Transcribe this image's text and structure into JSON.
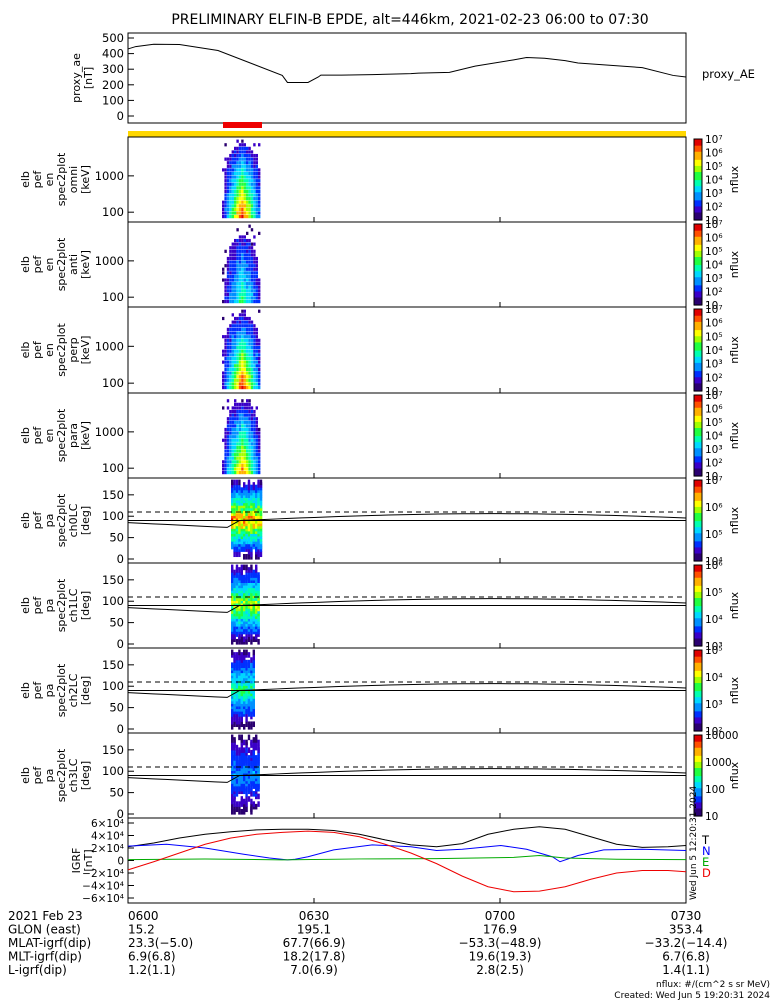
{
  "title": "PRELIMINARY ELFIN-B EPDE, alt=446km, 2021-02-23 06:00 to 07:30",
  "colors": {
    "yellow_bar": "#ffd700",
    "red_bar": "#ee0000",
    "T": "#000000",
    "N": "#0000ff",
    "E": "#00aa00",
    "D": "#ee0000"
  },
  "chart_data": [
    {
      "type": "line",
      "panel": "proxy_ae",
      "ylabel": [
        "proxy_ae",
        "[nT]"
      ],
      "series_label": "proxy_AE",
      "ylim": [
        0,
        550
      ],
      "yticks": [
        "0",
        "100",
        "200",
        "300",
        "400",
        "500"
      ],
      "x_minutes": [
        0,
        3,
        10,
        20,
        35,
        60,
        62,
        70,
        74,
        75,
        80,
        83,
        95,
        110,
        113,
        125,
        135,
        150,
        155,
        162,
        170,
        175,
        200,
        212,
        217
      ],
      "values": [
        430,
        445,
        460,
        458,
        420,
        260,
        215,
        215,
        250,
        262,
        262,
        262,
        265,
        272,
        275,
        280,
        320,
        360,
        375,
        370,
        355,
        340,
        310,
        260,
        250
      ]
    },
    {
      "type": "heatmap",
      "panel": "elb_pef_en_spec2plot_omni",
      "ylabel": [
        "elb",
        "pef",
        "en",
        "spec2plot",
        "omni",
        "[keV]"
      ],
      "scale": "log",
      "yticks": [
        "100",
        "1000"
      ],
      "colorbar_label": "nflux",
      "colorbar_ticks": [
        "10",
        "10²",
        "10³",
        "10⁴",
        "10⁵",
        "10⁶",
        "10⁷"
      ]
    },
    {
      "type": "heatmap",
      "panel": "elb_pef_en_spec2plot_anti",
      "ylabel": [
        "elb",
        "pef",
        "en",
        "spec2plot",
        "anti",
        "[keV]"
      ],
      "scale": "log",
      "yticks": [
        "100",
        "1000"
      ],
      "colorbar_label": "nflux",
      "colorbar_ticks": [
        "10",
        "10²",
        "10³",
        "10⁴",
        "10⁵",
        "10⁶",
        "10⁷"
      ]
    },
    {
      "type": "heatmap",
      "panel": "elb_pef_en_spec2plot_perp",
      "ylabel": [
        "elb",
        "pef",
        "en",
        "spec2plot",
        "perp",
        "[keV]"
      ],
      "scale": "log",
      "yticks": [
        "100",
        "1000"
      ],
      "colorbar_label": "nflux",
      "colorbar_ticks": [
        "10",
        "10²",
        "10³",
        "10⁴",
        "10⁵",
        "10⁶",
        "10⁷"
      ]
    },
    {
      "type": "heatmap",
      "panel": "elb_pef_en_spec2plot_para",
      "ylabel": [
        "elb",
        "pef",
        "en",
        "spec2plot",
        "para",
        "[keV]"
      ],
      "scale": "log",
      "yticks": [
        "100",
        "1000"
      ],
      "colorbar_label": "nflux",
      "colorbar_ticks": [
        "10",
        "10²",
        "10³",
        "10⁴",
        "10⁵",
        "10⁶",
        "10⁷"
      ]
    },
    {
      "type": "heatmap",
      "panel": "elb_pef_pa_spec2plot_ch0LC",
      "ylabel": [
        "elb",
        "pef",
        "pa",
        "spec2plot",
        "ch0LC",
        "[deg]"
      ],
      "ylim": [
        0,
        180
      ],
      "yticks": [
        "0",
        "50",
        "100",
        "150"
      ],
      "colorbar_label": "nflux",
      "colorbar_ticks": [
        "10⁴",
        "10⁵",
        "10⁶",
        "10⁷"
      ]
    },
    {
      "type": "heatmap",
      "panel": "elb_pef_pa_spec2plot_ch1LC",
      "ylabel": [
        "elb",
        "pef",
        "pa",
        "spec2plot",
        "ch1LC",
        "[deg]"
      ],
      "ylim": [
        0,
        180
      ],
      "yticks": [
        "0",
        "50",
        "100",
        "150"
      ],
      "colorbar_label": "nflux",
      "colorbar_ticks": [
        "10³",
        "10⁴",
        "10⁵",
        "10⁶"
      ]
    },
    {
      "type": "heatmap",
      "panel": "elb_pef_pa_spec2plot_ch2LC",
      "ylabel": [
        "elb",
        "pef",
        "pa",
        "spec2plot",
        "ch2LC",
        "[deg]"
      ],
      "ylim": [
        0,
        180
      ],
      "yticks": [
        "0",
        "50",
        "100",
        "150"
      ],
      "colorbar_label": "nflux",
      "colorbar_ticks": [
        "10²",
        "10³",
        "10⁴",
        "10⁵"
      ]
    },
    {
      "type": "heatmap",
      "panel": "elb_pef_pa_spec2plot_ch3LC",
      "ylabel": [
        "elb",
        "pef",
        "pa",
        "spec2plot",
        "ch3LC",
        "[deg]"
      ],
      "ylim": [
        0,
        180
      ],
      "yticks": [
        "0",
        "50",
        "100",
        "150"
      ],
      "colorbar_label": "nflux",
      "colorbar_ticks": [
        "10",
        "100",
        "1000",
        "10000"
      ]
    },
    {
      "type": "line",
      "panel": "IGRF",
      "ylabel": [
        "IGRF",
        "[nT]"
      ],
      "ylim": [
        -60000,
        60000
      ],
      "yticks": [
        "−6×10⁴",
        "−4×10⁴",
        "−2×10⁴",
        "0",
        "2×10⁴",
        "4×10⁴",
        "6×10⁴"
      ],
      "legend": [
        "T",
        "N",
        "E",
        "D"
      ],
      "series": [
        {
          "name": "T",
          "x_minutes": [
            0,
            10,
            20,
            30,
            40,
            50,
            60,
            70,
            80,
            90,
            100,
            110,
            120,
            130,
            140,
            150,
            160,
            170,
            180,
            190,
            200,
            210,
            217
          ],
          "values": [
            22000,
            28000,
            36000,
            42000,
            46000,
            49000,
            50000,
            50000,
            48000,
            42000,
            33000,
            25000,
            22000,
            27000,
            42000,
            50000,
            54000,
            50000,
            38000,
            26000,
            21000,
            22000,
            24000
          ]
        },
        {
          "name": "N",
          "x_minutes": [
            0,
            15,
            30,
            45,
            55,
            62,
            65,
            70,
            80,
            95,
            110,
            120,
            130,
            145,
            155,
            165,
            168,
            175,
            185,
            200,
            217
          ],
          "values": [
            23000,
            26000,
            20000,
            10000,
            4000,
            1000,
            2000,
            6000,
            17000,
            25000,
            22000,
            16000,
            18000,
            24000,
            18000,
            6000,
            -2000,
            8000,
            17000,
            18000,
            16000
          ]
        },
        {
          "name": "E",
          "x_minutes": [
            0,
            30,
            60,
            90,
            120,
            150,
            160,
            170,
            190,
            217
          ],
          "values": [
            1500,
            2500,
            1000,
            2500,
            3000,
            5000,
            8000,
            4000,
            2000,
            1500
          ]
        },
        {
          "name": "D",
          "x_minutes": [
            0,
            10,
            20,
            30,
            40,
            50,
            60,
            70,
            80,
            90,
            100,
            110,
            120,
            130,
            140,
            150,
            160,
            170,
            180,
            190,
            200,
            210,
            217
          ],
          "values": [
            -15000,
            -2000,
            12000,
            26000,
            36000,
            42000,
            45000,
            47000,
            45000,
            38000,
            26000,
            12000,
            -5000,
            -25000,
            -42000,
            -50000,
            -49000,
            -42000,
            -30000,
            -20000,
            -16000,
            -16000,
            -18000
          ]
        }
      ]
    }
  ],
  "xaxis": {
    "ticks": [
      "0600",
      "0630",
      "0700",
      "0730"
    ],
    "rows": [
      {
        "label": "2021 Feb 23",
        "values": [
          "0600",
          "0630",
          "0700",
          "0730"
        ]
      },
      {
        "label": "GLON (east)",
        "values": [
          "15.2",
          "195.1",
          "176.9",
          "353.4"
        ]
      },
      {
        "label": "MLAT-igrf(dip)",
        "values": [
          "23.3(−5.0)",
          "67.7(66.9)",
          "−53.3(−48.9)",
          "−33.2(−14.4)"
        ]
      },
      {
        "label": "MLT-igrf(dip)",
        "values": [
          "6.9(6.8)",
          "18.2(17.8)",
          "19.6(19.3)",
          "6.7(6.8)"
        ]
      },
      {
        "label": "L-igrf(dip)",
        "values": [
          "1.2(1.1)",
          "7.0(6.9)",
          "2.8(2.5)",
          "1.4(1.1)"
        ]
      }
    ]
  },
  "footer": {
    "units": "nflux: #/(cm^2 s sr MeV)",
    "created": "Created: Wed Jun  5 19:20:31 2024",
    "side_stamp": "Wed Jun  5 12:20:31 2024"
  }
}
